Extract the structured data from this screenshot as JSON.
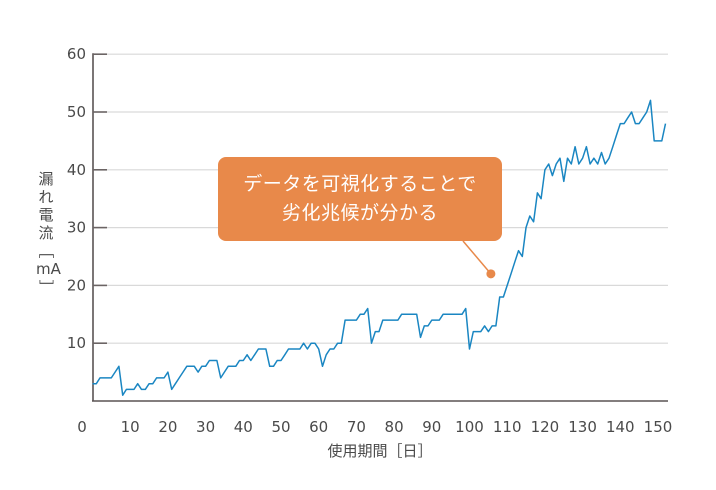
{
  "chart_data": {
    "type": "line",
    "title": "",
    "xlabel": "使用期間［日］",
    "ylabel": "漏れ電流［mA］",
    "xlim": [
      0,
      152
    ],
    "ylim": [
      0,
      60
    ],
    "grid": "horizontal",
    "x_ticks": [
      0,
      10,
      20,
      30,
      40,
      50,
      60,
      70,
      80,
      90,
      100,
      110,
      120,
      130,
      140,
      150
    ],
    "y_ticks": [
      10,
      20,
      30,
      40,
      50,
      60
    ],
    "series": [
      {
        "name": "漏れ電流",
        "color": "#1a86c2",
        "x": [
          0,
          1,
          2,
          3,
          4,
          5,
          6,
          7,
          8,
          9,
          10,
          11,
          12,
          13,
          14,
          15,
          16,
          17,
          18,
          19,
          20,
          21,
          22,
          23,
          24,
          25,
          26,
          27,
          28,
          29,
          30,
          31,
          32,
          33,
          34,
          35,
          36,
          37,
          38,
          39,
          40,
          41,
          42,
          43,
          44,
          45,
          46,
          47,
          48,
          49,
          50,
          51,
          52,
          53,
          54,
          55,
          56,
          57,
          58,
          59,
          60,
          61,
          62,
          63,
          64,
          65,
          66,
          67,
          68,
          69,
          70,
          71,
          72,
          73,
          74,
          75,
          76,
          77,
          78,
          79,
          80,
          81,
          82,
          83,
          84,
          85,
          86,
          87,
          88,
          89,
          90,
          91,
          92,
          93,
          94,
          95,
          96,
          97,
          98,
          99,
          100,
          101,
          102,
          103,
          104,
          105,
          106,
          107,
          108,
          109,
          110,
          111,
          112,
          113,
          114,
          115,
          116,
          117,
          118,
          119,
          120,
          121,
          122,
          123,
          124,
          125,
          126,
          127,
          128,
          129,
          130,
          131,
          132,
          133,
          134,
          135,
          136,
          137,
          138,
          139,
          140,
          141,
          142,
          143,
          144,
          145,
          146,
          147,
          148,
          149,
          150,
          151,
          152
        ],
        "values": [
          3,
          3,
          4,
          4,
          4,
          4,
          5,
          6,
          1,
          2,
          2,
          2,
          3,
          2,
          2,
          3,
          3,
          4,
          4,
          4,
          5,
          2,
          3,
          4,
          5,
          6,
          6,
          6,
          5,
          6,
          6,
          7,
          7,
          7,
          4,
          5,
          6,
          6,
          6,
          7,
          7,
          8,
          7,
          8,
          9,
          9,
          9,
          6,
          6,
          7,
          7,
          8,
          9,
          9,
          9,
          9,
          10,
          9,
          10,
          10,
          9,
          6,
          8,
          9,
          9,
          10,
          10,
          14,
          14,
          14,
          14,
          15,
          15,
          16,
          10,
          12,
          12,
          14,
          14,
          14,
          14,
          14,
          15,
          15,
          15,
          15,
          15,
          11,
          13,
          13,
          14,
          14,
          14,
          15,
          15,
          15,
          15,
          15,
          15,
          16,
          9,
          12,
          12,
          12,
          13,
          12,
          13,
          13,
          18,
          18,
          20,
          22,
          24,
          26,
          25,
          30,
          32,
          31,
          36,
          35,
          40,
          41,
          39,
          41,
          42,
          38,
          42,
          41,
          44,
          41,
          42,
          44,
          41,
          42,
          41,
          43,
          41,
          42,
          44,
          46,
          48,
          48,
          49,
          50,
          48,
          48,
          49,
          50,
          52,
          45,
          45,
          45,
          48
        ]
      }
    ],
    "annotation": {
      "lines": [
        "データを可視化することで",
        "劣化兆候が分かる"
      ],
      "point": {
        "x": 107,
        "y": 22
      },
      "color": "#E8894A"
    }
  },
  "y_label_chars": [
    "漏",
    "れ",
    "電",
    "流",
    "［",
    "mA",
    "］"
  ]
}
